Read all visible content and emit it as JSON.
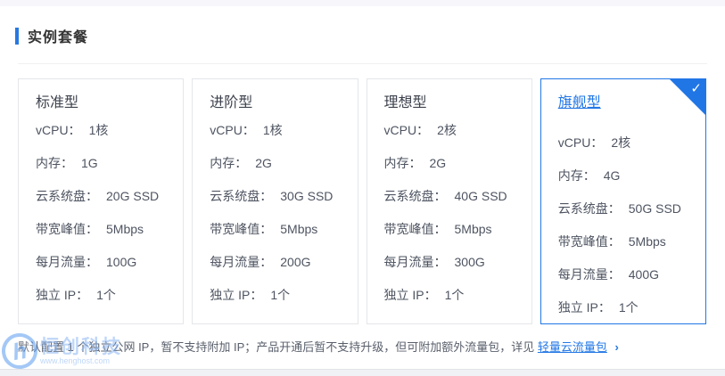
{
  "page": {
    "section_title": "实例套餐"
  },
  "spec_labels": {
    "vcpu": "vCPU：",
    "memory": "内存：",
    "disk": "云系统盘：",
    "bandwidth": "带宽峰值：",
    "traffic": "每月流量：",
    "ip": "独立 IP："
  },
  "cards": [
    {
      "title": "标准型",
      "selected": false,
      "specs": {
        "vcpu": "1核",
        "memory": "1G",
        "disk": "20G SSD",
        "bandwidth": "5Mbps",
        "traffic": "100G",
        "ip": "1个"
      }
    },
    {
      "title": "进阶型",
      "selected": false,
      "specs": {
        "vcpu": "1核",
        "memory": "2G",
        "disk": "30G SSD",
        "bandwidth": "5Mbps",
        "traffic": "200G",
        "ip": "1个"
      }
    },
    {
      "title": "理想型",
      "selected": false,
      "specs": {
        "vcpu": "2核",
        "memory": "2G",
        "disk": "40G SSD",
        "bandwidth": "5Mbps",
        "traffic": "300G",
        "ip": "1个"
      }
    },
    {
      "title": "旗舰型",
      "selected": true,
      "specs": {
        "vcpu": "2核",
        "memory": "4G",
        "disk": "50G SSD",
        "bandwidth": "5Mbps",
        "traffic": "400G",
        "ip": "1个"
      }
    }
  ],
  "footnote": {
    "text": "默认配置 1 个独立公网 IP，暂不支持附加 IP；产品开通后暂不支持升级，但可附加额外流量包，详见",
    "link_label": "轻量云流量包"
  },
  "icons": {
    "check": "✓",
    "chevron_right": "›"
  },
  "watermark": {
    "logo_letter": "h",
    "brand": "恒创科技",
    "url": "www.henghost.com"
  },
  "colors": {
    "accent_blue": "#2277e6",
    "selected_corner": "#2176e6",
    "card_border": "#e4e6ea",
    "title_text": "#333333",
    "spec_text": "#4e5461",
    "footnote_text": "#595f6b",
    "watermark_blue": "#8ab5f3"
  }
}
